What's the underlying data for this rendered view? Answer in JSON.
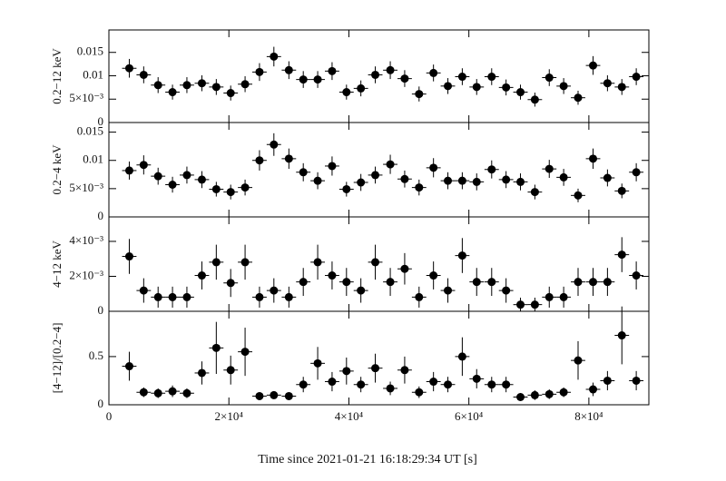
{
  "x_label": "Time since 2021-01-21 16:18:29:34 UT [s]",
  "chart_data": [
    {
      "type": "scatter",
      "y_label": "0.2−12 keV",
      "x": [
        3400,
        5800,
        8200,
        10600,
        13000,
        15500,
        17900,
        20300,
        22700,
        25100,
        27500,
        30000,
        32400,
        34800,
        37200,
        39600,
        42000,
        44400,
        46900,
        49300,
        51700,
        54100,
        56500,
        58900,
        61300,
        63800,
        66200,
        68600,
        71000,
        73400,
        75800,
        78200,
        80700,
        83100,
        85500,
        87900
      ],
      "x_errors": [
        1200,
        1200,
        1200,
        1200,
        1200,
        1200,
        1200,
        1200,
        1200,
        1200,
        1200,
        1200,
        1200,
        1200,
        1200,
        1200,
        1200,
        1200,
        1200,
        1200,
        1200,
        1200,
        1200,
        1200,
        1200,
        1200,
        1200,
        1200,
        1200,
        1200,
        1200,
        1200,
        1200,
        1200,
        1200,
        1200
      ],
      "values": [
        0.0116,
        0.0102,
        0.008,
        0.0065,
        0.008,
        0.0084,
        0.0076,
        0.0063,
        0.0082,
        0.0108,
        0.0141,
        0.0112,
        0.0092,
        0.0092,
        0.011,
        0.0065,
        0.0073,
        0.0102,
        0.0112,
        0.0094,
        0.0061,
        0.0106,
        0.0078,
        0.0098,
        0.0076,
        0.0098,
        0.0075,
        0.0065,
        0.0049,
        0.0096,
        0.0078,
        0.0053,
        0.0122,
        0.0084,
        0.0076,
        0.0098
      ],
      "errors": [
        0.002,
        0.0018,
        0.0017,
        0.0016,
        0.0017,
        0.0017,
        0.0017,
        0.0016,
        0.0017,
        0.0019,
        0.0021,
        0.0019,
        0.0018,
        0.0018,
        0.0019,
        0.0016,
        0.0017,
        0.0018,
        0.0019,
        0.0018,
        0.0016,
        0.0018,
        0.0017,
        0.0018,
        0.0017,
        0.0018,
        0.0017,
        0.0016,
        0.0015,
        0.0018,
        0.0017,
        0.0015,
        0.002,
        0.0017,
        0.0017,
        0.0018
      ],
      "xlim": [
        0,
        90000
      ],
      "xticks": [
        0,
        20000,
        40000,
        60000,
        80000
      ],
      "ylim": [
        0,
        0.0198
      ],
      "yticks": [
        0,
        {
          "value": 0.005,
          "label": "5×10⁻³"
        },
        0.01,
        0.015
      ],
      "color": "#000000"
    },
    {
      "type": "scatter",
      "y_label": "0.2−4 keV",
      "x": [
        3400,
        5800,
        8200,
        10600,
        13000,
        15500,
        17900,
        20300,
        22700,
        25100,
        27500,
        30000,
        32400,
        34800,
        37200,
        39600,
        42000,
        44400,
        46900,
        49300,
        51700,
        54100,
        56500,
        58900,
        61300,
        63800,
        66200,
        68600,
        71000,
        73400,
        75800,
        78200,
        80700,
        83100,
        85500,
        87900
      ],
      "x_errors": [
        1200,
        1200,
        1200,
        1200,
        1200,
        1200,
        1200,
        1200,
        1200,
        1200,
        1200,
        1200,
        1200,
        1200,
        1200,
        1200,
        1200,
        1200,
        1200,
        1200,
        1200,
        1200,
        1200,
        1200,
        1200,
        1200,
        1200,
        1200,
        1200,
        1200,
        1200,
        1200,
        1200,
        1200,
        1200,
        1200
      ],
      "values": [
        0.0082,
        0.0092,
        0.0072,
        0.0057,
        0.0074,
        0.0066,
        0.0049,
        0.0044,
        0.0052,
        0.01,
        0.0128,
        0.0103,
        0.0079,
        0.0064,
        0.009,
        0.0049,
        0.0061,
        0.0074,
        0.0093,
        0.0067,
        0.0052,
        0.0087,
        0.0064,
        0.0064,
        0.0062,
        0.0084,
        0.0066,
        0.0062,
        0.0044,
        0.0085,
        0.007,
        0.0038,
        0.0103,
        0.0069,
        0.0046,
        0.0079
      ],
      "errors": [
        0.0016,
        0.0017,
        0.0015,
        0.0014,
        0.0015,
        0.0015,
        0.0013,
        0.0013,
        0.0014,
        0.0018,
        0.002,
        0.0018,
        0.0016,
        0.0015,
        0.0017,
        0.0013,
        0.0015,
        0.0015,
        0.0017,
        0.0015,
        0.0014,
        0.0017,
        0.0015,
        0.0015,
        0.0015,
        0.0016,
        0.0015,
        0.0015,
        0.0013,
        0.0016,
        0.0015,
        0.0012,
        0.0018,
        0.0015,
        0.0013,
        0.0016
      ],
      "xlim": [
        0,
        90000
      ],
      "xticks": [
        0,
        20000,
        40000,
        60000,
        80000
      ],
      "ylim": [
        0,
        0.0167
      ],
      "yticks": [
        0,
        {
          "value": 0.005,
          "label": "5×10⁻³"
        },
        0.01,
        0.015
      ],
      "color": "#000000"
    },
    {
      "type": "scatter",
      "y_label": "4−12 keV",
      "x": [
        3400,
        5800,
        8200,
        10600,
        13000,
        15500,
        17900,
        20300,
        22700,
        25100,
        27500,
        30000,
        32400,
        34800,
        37200,
        39600,
        42000,
        44400,
        46900,
        49300,
        51700,
        54100,
        56500,
        58900,
        61300,
        63800,
        66200,
        68600,
        71000,
        73400,
        75800,
        78200,
        80700,
        83100,
        85500,
        87900
      ],
      "x_errors": [
        1200,
        1200,
        1200,
        1200,
        1200,
        1200,
        1200,
        1200,
        1200,
        1200,
        1200,
        1200,
        1200,
        1200,
        1200,
        1200,
        1200,
        1200,
        1200,
        1200,
        1200,
        1200,
        1200,
        1200,
        1200,
        1200,
        1200,
        1200,
        1200,
        1200,
        1200,
        1200,
        1200,
        1200,
        1200,
        1200
      ],
      "values": [
        0.00314,
        0.00119,
        0.00081,
        0.00081,
        0.00081,
        0.00205,
        0.00281,
        0.00162,
        0.00281,
        0.00081,
        0.00119,
        0.00081,
        0.00168,
        0.00281,
        0.00205,
        0.00168,
        0.00119,
        0.00281,
        0.00168,
        0.00243,
        0.00081,
        0.00205,
        0.00119,
        0.00319,
        0.00168,
        0.00168,
        0.00119,
        0.00038,
        0.00038,
        0.00081,
        0.00081,
        0.00168,
        0.00168,
        0.00168,
        0.00324,
        0.00205
      ],
      "errors": [
        0.001,
        0.0007,
        0.0006,
        0.0006,
        0.0006,
        0.0008,
        0.001,
        0.0008,
        0.001,
        0.0006,
        0.0007,
        0.0006,
        0.0008,
        0.001,
        0.0008,
        0.0008,
        0.0007,
        0.001,
        0.0008,
        0.0009,
        0.0006,
        0.0008,
        0.0007,
        0.001,
        0.0008,
        0.0008,
        0.0007,
        0.0004,
        0.0004,
        0.0006,
        0.0006,
        0.0008,
        0.0008,
        0.0008,
        0.001,
        0.0008
      ],
      "xlim": [
        0,
        90000
      ],
      "xticks": [
        0,
        20000,
        40000,
        60000,
        80000
      ],
      "ylim": [
        0,
        0.0054
      ],
      "yticks": [
        0,
        {
          "value": 0.002,
          "label": "2×10⁻³"
        },
        {
          "value": 0.004,
          "label": "4×10⁻³"
        }
      ],
      "color": "#000000"
    },
    {
      "type": "scatter",
      "y_label": "[4−12]/[0.2−4]",
      "x": [
        3400,
        5800,
        8200,
        10600,
        13000,
        15500,
        17900,
        20300,
        22700,
        25100,
        27500,
        30000,
        32400,
        34800,
        37200,
        39600,
        42000,
        44400,
        46900,
        49300,
        51700,
        54100,
        56500,
        58900,
        61300,
        63800,
        66200,
        68600,
        71000,
        73400,
        75800,
        78200,
        80700,
        83100,
        85500,
        87900
      ],
      "x_errors": [
        1200,
        1200,
        1200,
        1200,
        1200,
        1200,
        1200,
        1200,
        1200,
        1200,
        1200,
        1200,
        1200,
        1200,
        1200,
        1200,
        1200,
        1200,
        1200,
        1200,
        1200,
        1200,
        1200,
        1200,
        1200,
        1200,
        1200,
        1200,
        1200,
        1200,
        1200,
        1200,
        1200,
        1200,
        1200,
        1200
      ],
      "values": [
        0.4,
        0.13,
        0.12,
        0.14,
        0.12,
        0.33,
        0.59,
        0.36,
        0.55,
        0.09,
        0.1,
        0.09,
        0.21,
        0.43,
        0.24,
        0.35,
        0.21,
        0.38,
        0.17,
        0.36,
        0.13,
        0.24,
        0.21,
        0.5,
        0.27,
        0.21,
        0.21,
        0.08,
        0.1,
        0.11,
        0.13,
        0.46,
        0.16,
        0.25,
        0.72,
        0.25
      ],
      "errors": [
        0.15,
        0.05,
        0.05,
        0.06,
        0.05,
        0.12,
        0.27,
        0.15,
        0.25,
        0.04,
        0.04,
        0.04,
        0.08,
        0.17,
        0.1,
        0.14,
        0.08,
        0.15,
        0.07,
        0.14,
        0.06,
        0.1,
        0.08,
        0.2,
        0.1,
        0.08,
        0.08,
        0.04,
        0.05,
        0.05,
        0.05,
        0.2,
        0.07,
        0.1,
        0.3,
        0.1
      ],
      "xlim": [
        0,
        90000
      ],
      "xticks": [
        0,
        {
          "value": 20000,
          "label": "2×10⁴"
        },
        {
          "value": 40000,
          "label": "4×10⁴"
        },
        {
          "value": 60000,
          "label": "6×10⁴"
        },
        {
          "value": 80000,
          "label": "8×10⁴"
        }
      ],
      "ylim": [
        0,
        0.97
      ],
      "yticks": [
        0,
        0.5
      ],
      "color": "#000000"
    }
  ]
}
